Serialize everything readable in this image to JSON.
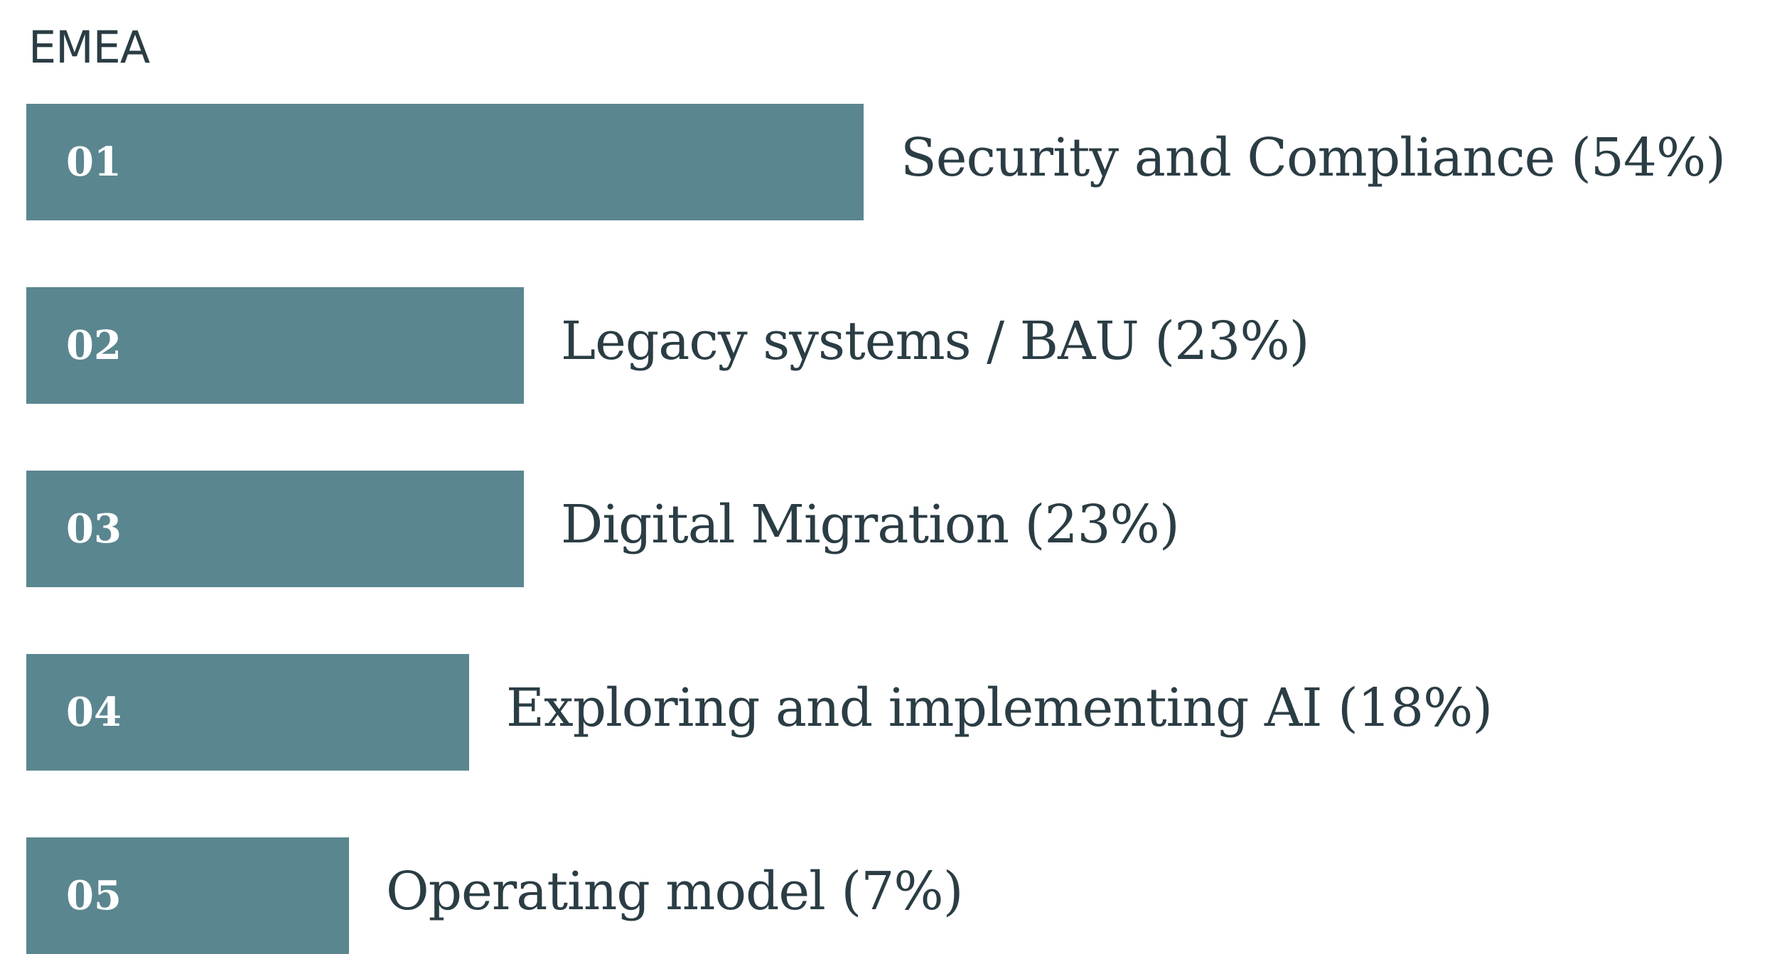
{
  "chart_data": {
    "type": "bar",
    "orientation": "horizontal",
    "title": "EMEA",
    "bar_color": "#5a8690",
    "label_color": "#2b3d44",
    "categories": [
      "01",
      "02",
      "03",
      "04",
      "05"
    ],
    "labels": [
      "Security and Compliance (54%)",
      "Legacy systems / BAU (23%)",
      "Digital Migration (23%)",
      "Exploring and implementing AI (18%)",
      "Operating model (7%)"
    ],
    "values": [
      54,
      23,
      23,
      18,
      7
    ],
    "unit": "%"
  }
}
